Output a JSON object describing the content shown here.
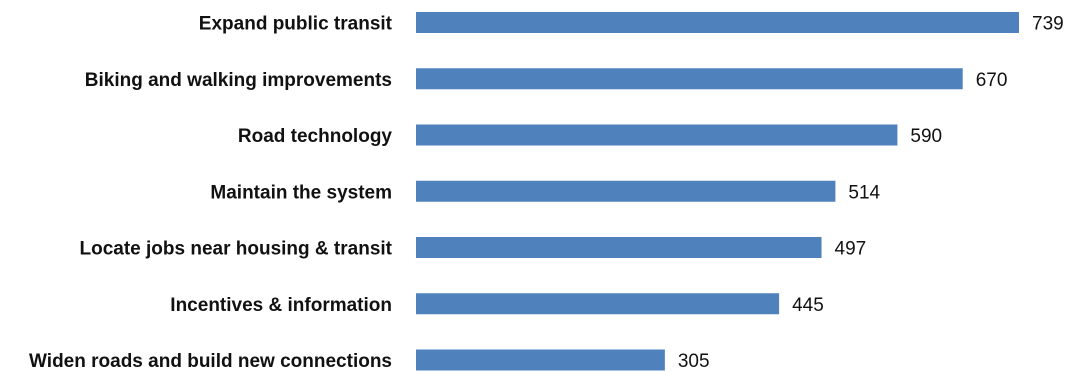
{
  "chart_data": {
    "type": "bar",
    "orientation": "horizontal",
    "title": "",
    "xlabel": "",
    "ylabel": "",
    "categories": [
      "Expand public transit",
      "Biking and walking improvements",
      "Road technology",
      "Maintain the system",
      "Locate jobs near housing & transit",
      "Incentives & information",
      "Widen roads and build new connections"
    ],
    "values": [
      739,
      670,
      590,
      514,
      497,
      445,
      305
    ],
    "xlim": [
      0,
      739
    ],
    "grid": false,
    "legend": "none",
    "colors": {
      "bar": "#4f81bd",
      "text": "#111111",
      "background": "#ffffff"
    }
  }
}
